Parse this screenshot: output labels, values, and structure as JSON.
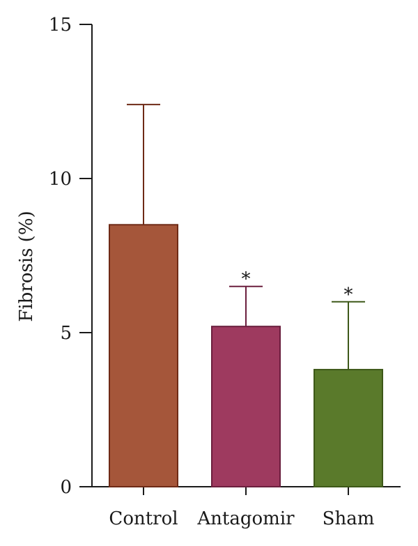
{
  "chart_data": {
    "type": "bar",
    "categories": [
      "Control",
      "Antagomir",
      "Sham"
    ],
    "values": [
      8.5,
      5.2,
      3.8
    ],
    "error_upper": [
      12.4,
      6.5,
      6.0
    ],
    "significance": [
      "",
      "*",
      "*"
    ],
    "colors": [
      "#a5563a",
      "#9e3a5f",
      "#5a7a2b"
    ],
    "edge_colors": [
      "#6e2a16",
      "#6b1f3e",
      "#3d5818"
    ],
    "ylabel": "Fibrosis (%)",
    "xlabel": "",
    "title": "",
    "ylim": [
      0,
      15
    ],
    "yticks": [
      0,
      5,
      10,
      15
    ],
    "grid": false
  }
}
